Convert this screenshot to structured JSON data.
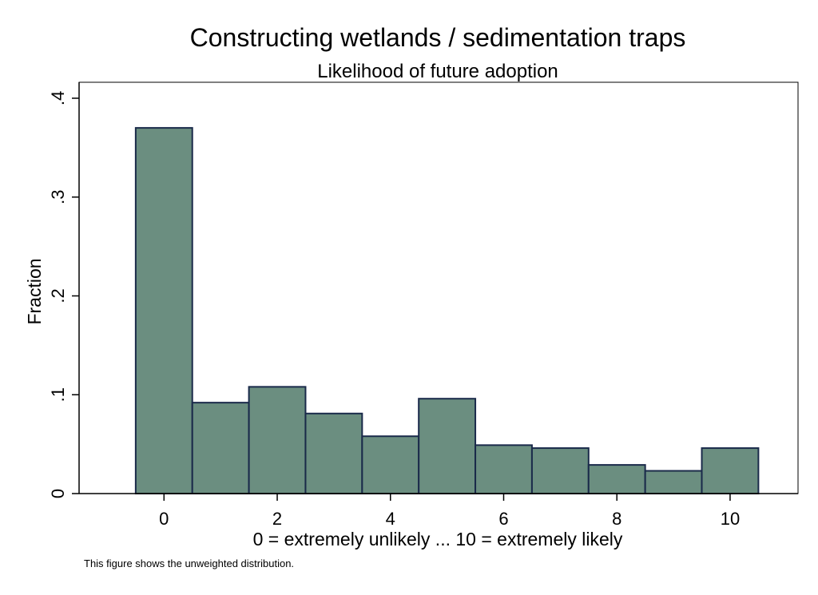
{
  "chart_data": {
    "type": "bar",
    "title": "Constructing wetlands / sedimentation traps",
    "subtitle": "Likelihood of future adoption",
    "xlabel": "0 = extremely unlikely ... 10 = extremely likely",
    "ylabel": "Fraction",
    "note": "This figure shows the unweighted distribution.",
    "categories": [
      0,
      1,
      2,
      3,
      4,
      5,
      6,
      7,
      8,
      9,
      10
    ],
    "values": [
      0.37,
      0.092,
      0.108,
      0.081,
      0.058,
      0.096,
      0.049,
      0.046,
      0.029,
      0.023,
      0.046
    ],
    "xlim": [
      -1.5,
      11.2
    ],
    "ylim": [
      0,
      0.4
    ],
    "xticks": [
      0,
      2,
      4,
      6,
      8,
      10
    ],
    "xtick_labels": [
      "0",
      "2",
      "4",
      "6",
      "8",
      "10"
    ],
    "yticks": [
      0,
      0.1,
      0.2,
      0.3,
      0.4
    ],
    "ytick_labels": [
      "0",
      ".1",
      ".2",
      ".3",
      ".4"
    ],
    "grid": false,
    "bar_color": "#6b8e80",
    "bar_edge_color": "#1a2a4a"
  }
}
